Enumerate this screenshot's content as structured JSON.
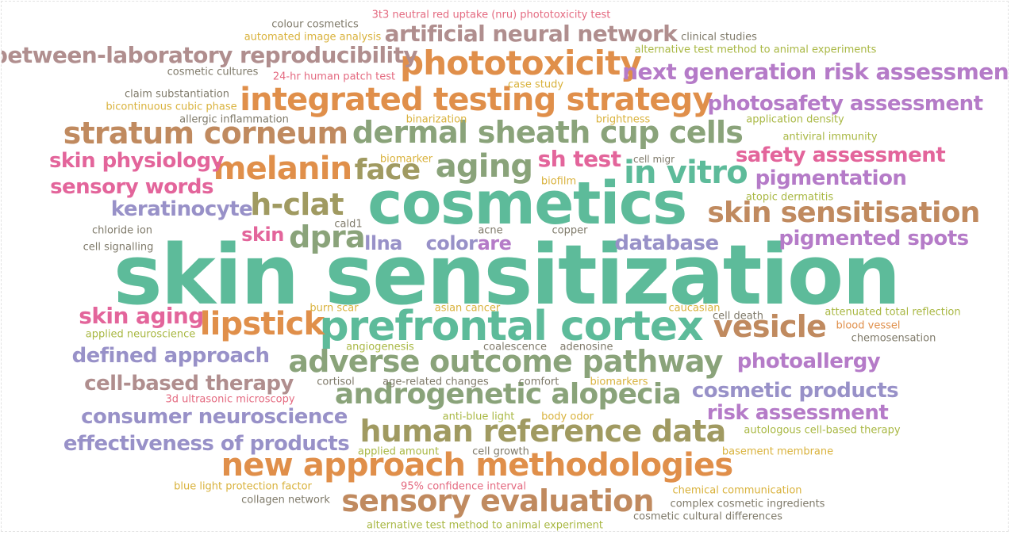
{
  "words": [
    {
      "text": "skin sensitization",
      "color": "#5dbb9a"
    },
    {
      "text": "cosmetics",
      "color": "#5dbb9a"
    },
    {
      "text": "prefrontal cortex",
      "color": "#5dbb9a"
    },
    {
      "text": "adverse outcome pathway",
      "color": "#8aa37a"
    },
    {
      "text": "androgenetic alopecia",
      "color": "#8aa37a"
    },
    {
      "text": "human reference data",
      "color": "#a09a61"
    },
    {
      "text": "new approach methodologies",
      "color": "#e08f4a"
    },
    {
      "text": "sensory evaluation",
      "color": "#c08a5f"
    },
    {
      "text": "integrated testing strategy",
      "color": "#e08f4a"
    },
    {
      "text": "phototoxicity",
      "color": "#e08f4a"
    },
    {
      "text": "dermal sheath cup cells",
      "color": "#8aa37a"
    },
    {
      "text": "stratum corneum",
      "color": "#c08a5f"
    },
    {
      "text": "melanin",
      "color": "#e08f4a"
    },
    {
      "text": "aging",
      "color": "#8aa37a"
    },
    {
      "text": "face",
      "color": "#a09a61"
    },
    {
      "text": "in vitro",
      "color": "#5dbb9a"
    },
    {
      "text": "skin sensitisation",
      "color": "#c08a5f"
    },
    {
      "text": "h-clat",
      "color": "#a09a61"
    },
    {
      "text": "dpra",
      "color": "#8aa37a"
    },
    {
      "text": "lipstick",
      "color": "#e08f4a"
    },
    {
      "text": "vesicle",
      "color": "#c08a5f"
    },
    {
      "text": "between-laboratory reproducibility",
      "color": "#b08e8e"
    },
    {
      "text": "artificial neural network",
      "color": "#b08e8e"
    },
    {
      "text": "next generation risk assessment",
      "color": "#b57bc8"
    },
    {
      "text": "photosafety assessment",
      "color": "#b57bc8"
    },
    {
      "text": "safety assessment",
      "color": "#e3659b"
    },
    {
      "text": "pigmentation",
      "color": "#b57bc8"
    },
    {
      "text": "pigmented spots",
      "color": "#b57bc8"
    },
    {
      "text": "skin physiology",
      "color": "#e3659b"
    },
    {
      "text": "sensory words",
      "color": "#e3659b"
    },
    {
      "text": "keratinocyte",
      "color": "#9891c8"
    },
    {
      "text": "skin",
      "color": "#e3659b"
    },
    {
      "text": "sh test",
      "color": "#e3659b"
    },
    {
      "text": "llna",
      "color": "#9891c8"
    },
    {
      "text": "color",
      "color": "#9891c8"
    },
    {
      "text": "are",
      "color": "#b57bc8"
    },
    {
      "text": "database",
      "color": "#9891c8"
    },
    {
      "text": "skin aging",
      "color": "#e3659b"
    },
    {
      "text": "defined approach",
      "color": "#9891c8"
    },
    {
      "text": "cell-based therapy",
      "color": "#b08e8e"
    },
    {
      "text": "consumer neuroscience",
      "color": "#9891c8"
    },
    {
      "text": "effectiveness of products",
      "color": "#9891c8"
    },
    {
      "text": "photoallergy",
      "color": "#b57bc8"
    },
    {
      "text": "cosmetic products",
      "color": "#9891c8"
    },
    {
      "text": "risk assessment",
      "color": "#b57bc8"
    },
    {
      "text": "3t3 neutral red uptake (nru) phototoxicity test",
      "color": "#e46a80"
    },
    {
      "text": "colour cosmetics",
      "color": "#7f7a6a"
    },
    {
      "text": "automated image analysis",
      "color": "#d9b23c"
    },
    {
      "text": "clinical studies",
      "color": "#7f7a6a"
    },
    {
      "text": "alternative test method to animal experiments",
      "color": "#a9b844"
    },
    {
      "text": "cosmetic cultures",
      "color": "#7f7a6a"
    },
    {
      "text": "24-hr human patch test",
      "color": "#e46a80"
    },
    {
      "text": "claim substantiation",
      "color": "#7f7a6a"
    },
    {
      "text": "case study",
      "color": "#d9b23c"
    },
    {
      "text": "bicontinuous cubic phase",
      "color": "#d9b23c"
    },
    {
      "text": "allergic inflammation",
      "color": "#7f7a6a"
    },
    {
      "text": "binarization",
      "color": "#d9b23c"
    },
    {
      "text": "brightness",
      "color": "#d9b23c"
    },
    {
      "text": "application density",
      "color": "#a9b844"
    },
    {
      "text": "antiviral immunity",
      "color": "#a9b844"
    },
    {
      "text": "biomarker",
      "color": "#d9b23c"
    },
    {
      "text": "cell migr",
      "color": "#7f7a6a"
    },
    {
      "text": "biofilm",
      "color": "#d9b23c"
    },
    {
      "text": "atopic dermatitis",
      "color": "#a9b844"
    },
    {
      "text": "cald1",
      "color": "#7f7a6a"
    },
    {
      "text": "chloride ion",
      "color": "#7f7a6a"
    },
    {
      "text": "acne",
      "color": "#7f7a6a"
    },
    {
      "text": "copper",
      "color": "#7f7a6a"
    },
    {
      "text": "cell signalling",
      "color": "#7f7a6a"
    },
    {
      "text": "burn scar",
      "color": "#d9b23c"
    },
    {
      "text": "asian cancer",
      "color": "#d9b23c"
    },
    {
      "text": "caucasian",
      "color": "#d9b23c"
    },
    {
      "text": "cell death",
      "color": "#7f7a6a"
    },
    {
      "text": "attenuated total reflection",
      "color": "#a9b844"
    },
    {
      "text": "applied neuroscience",
      "color": "#a9b844"
    },
    {
      "text": "blood vessel",
      "color": "#e08f4a"
    },
    {
      "text": "chemosensation",
      "color": "#7f7a6a"
    },
    {
      "text": "angiogenesis",
      "color": "#a9b844"
    },
    {
      "text": "coalescence",
      "color": "#7f7a6a"
    },
    {
      "text": "adenosine",
      "color": "#7f7a6a"
    },
    {
      "text": "cortisol",
      "color": "#7f7a6a"
    },
    {
      "text": "age-related changes",
      "color": "#7f7a6a"
    },
    {
      "text": "comfort",
      "color": "#7f7a6a"
    },
    {
      "text": "biomarkers",
      "color": "#d9b23c"
    },
    {
      "text": "3d ultrasonic microscopy",
      "color": "#e46a80"
    },
    {
      "text": "anti-blue light",
      "color": "#a9b844"
    },
    {
      "text": "body odor",
      "color": "#d9b23c"
    },
    {
      "text": "autologous cell-based therapy",
      "color": "#a9b844"
    },
    {
      "text": "applied amount",
      "color": "#a9b844"
    },
    {
      "text": "cell growth",
      "color": "#7f7a6a"
    },
    {
      "text": "basement membrane",
      "color": "#d9b23c"
    },
    {
      "text": "blue light protection factor",
      "color": "#d9b23c"
    },
    {
      "text": "95% confidence interval",
      "color": "#e46a80"
    },
    {
      "text": "chemical communication",
      "color": "#d9b23c"
    },
    {
      "text": "collagen network",
      "color": "#7f7a6a"
    },
    {
      "text": "complex cosmetic ingredients",
      "color": "#7f7a6a"
    },
    {
      "text": "cosmetic cultural differences",
      "color": "#7f7a6a"
    },
    {
      "text": "alternative test method to animal experiment",
      "color": "#a9b844"
    }
  ]
}
